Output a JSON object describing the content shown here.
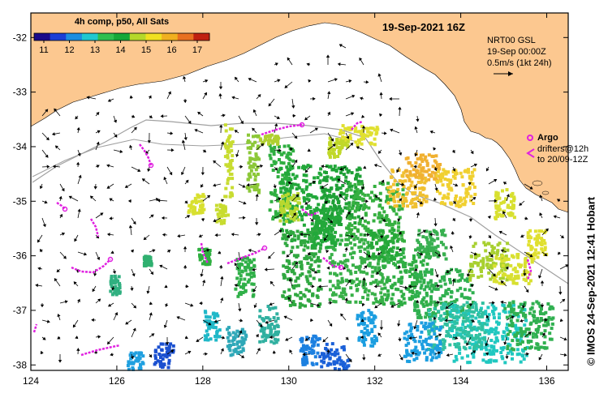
{
  "title": "19-Sep-2021 16Z",
  "colorbar": {
    "label": "4h comp, p50, All Sats",
    "ticks": [
      "11",
      "12",
      "13",
      "14",
      "15",
      "16",
      "17"
    ],
    "colors": [
      "#1a0a8a",
      "#1b3fd6",
      "#1c8ee0",
      "#20c8d0",
      "#2fbf4f",
      "#15a838",
      "#b5d82a",
      "#f0e020",
      "#f0b020",
      "#e87020",
      "#c02010"
    ]
  },
  "legend": {
    "product": "NRT00 GSL",
    "time": "19-Sep 00:00Z",
    "scale": "0.5m/s (1kt 24h)",
    "argo_label": "Argo",
    "drifters_line1": "drifters@12h",
    "drifters_line2": "to 20/09-12Z",
    "argo_color": "#e020e0"
  },
  "axes": {
    "x_ticks": [
      "124",
      "126",
      "128",
      "130",
      "132",
      "134",
      "136"
    ],
    "y_ticks": [
      "-32",
      "-33",
      "-34",
      "-35",
      "-36",
      "-37",
      "-38"
    ]
  },
  "credit": "© IMOS 24-Sep-2021 12:41 Hobart",
  "colors": {
    "land": "#fcc890",
    "ocean": "#ffffff",
    "bathymetry": "#a0a0a0",
    "frame": "#000000"
  }
}
